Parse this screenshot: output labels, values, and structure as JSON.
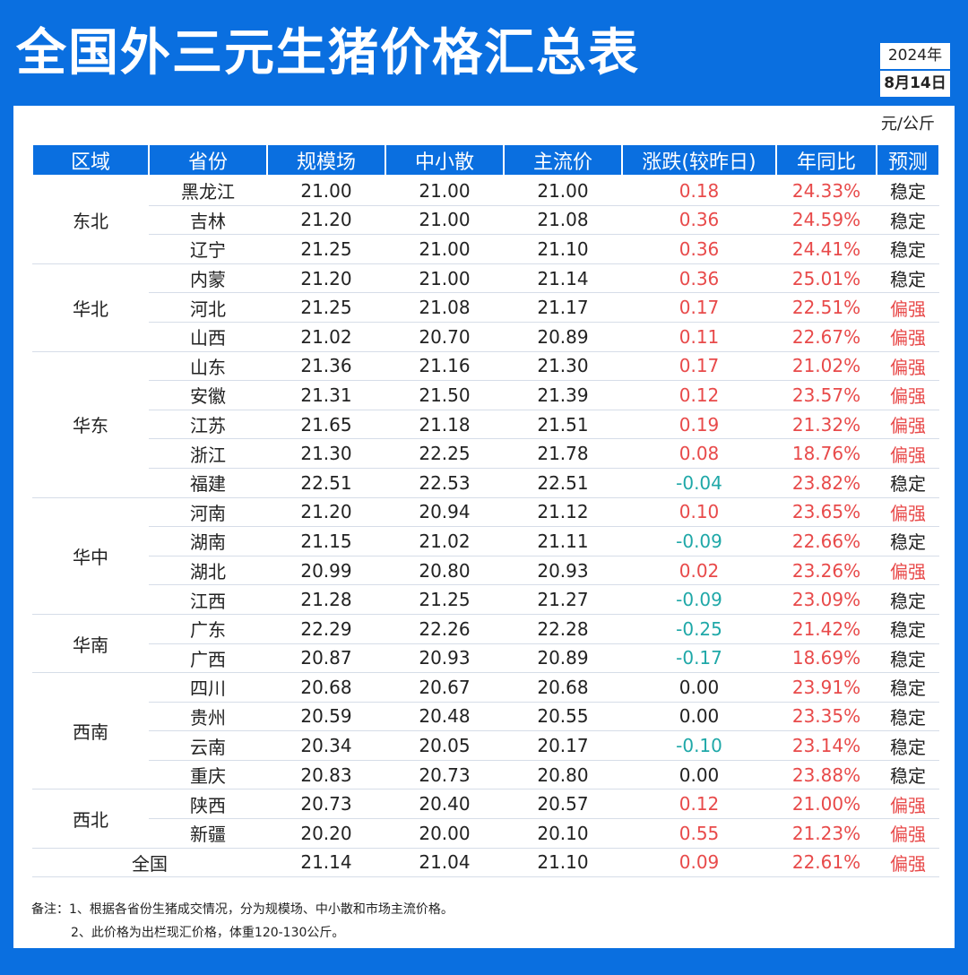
{
  "title": "全国外三元生猪价格汇总表",
  "date": {
    "year": "2024年",
    "day": "8月14日"
  },
  "unit": "元/公斤",
  "headers": [
    "区域",
    "省份",
    "规模场",
    "中小散",
    "主流价",
    "涨跌(较昨日)",
    "年同比",
    "预测"
  ],
  "regions": [
    {
      "name": "东北",
      "rows": [
        {
          "province": "黑龙江",
          "large": "21.00",
          "small": "21.00",
          "main": "21.00",
          "change": "0.18",
          "yoy": "24.33%",
          "forecast": "稳定"
        },
        {
          "province": "吉林",
          "large": "21.20",
          "small": "21.00",
          "main": "21.08",
          "change": "0.36",
          "yoy": "24.59%",
          "forecast": "稳定"
        },
        {
          "province": "辽宁",
          "large": "21.25",
          "small": "21.00",
          "main": "21.10",
          "change": "0.36",
          "yoy": "24.41%",
          "forecast": "稳定"
        }
      ]
    },
    {
      "name": "华北",
      "rows": [
        {
          "province": "内蒙",
          "large": "21.20",
          "small": "21.00",
          "main": "21.14",
          "change": "0.36",
          "yoy": "25.01%",
          "forecast": "稳定"
        },
        {
          "province": "河北",
          "large": "21.25",
          "small": "21.08",
          "main": "21.17",
          "change": "0.17",
          "yoy": "22.51%",
          "forecast": "偏强"
        },
        {
          "province": "山西",
          "large": "21.02",
          "small": "20.70",
          "main": "20.89",
          "change": "0.11",
          "yoy": "22.67%",
          "forecast": "偏强"
        }
      ]
    },
    {
      "name": "华东",
      "rows": [
        {
          "province": "山东",
          "large": "21.36",
          "small": "21.16",
          "main": "21.30",
          "change": "0.17",
          "yoy": "21.02%",
          "forecast": "偏强"
        },
        {
          "province": "安徽",
          "large": "21.31",
          "small": "21.50",
          "main": "21.39",
          "change": "0.12",
          "yoy": "23.57%",
          "forecast": "偏强"
        },
        {
          "province": "江苏",
          "large": "21.65",
          "small": "21.18",
          "main": "21.51",
          "change": "0.19",
          "yoy": "21.32%",
          "forecast": "偏强"
        },
        {
          "province": "浙江",
          "large": "21.30",
          "small": "22.25",
          "main": "21.78",
          "change": "0.08",
          "yoy": "18.76%",
          "forecast": "偏强"
        },
        {
          "province": "福建",
          "large": "22.51",
          "small": "22.53",
          "main": "22.51",
          "change": "-0.04",
          "yoy": "23.82%",
          "forecast": "稳定"
        }
      ]
    },
    {
      "name": "华中",
      "rows": [
        {
          "province": "河南",
          "large": "21.20",
          "small": "20.94",
          "main": "21.12",
          "change": "0.10",
          "yoy": "23.65%",
          "forecast": "偏强"
        },
        {
          "province": "湖南",
          "large": "21.15",
          "small": "21.02",
          "main": "21.11",
          "change": "-0.09",
          "yoy": "22.66%",
          "forecast": "稳定"
        },
        {
          "province": "湖北",
          "large": "20.99",
          "small": "20.80",
          "main": "20.93",
          "change": "0.02",
          "yoy": "23.26%",
          "forecast": "偏强"
        },
        {
          "province": "江西",
          "large": "21.28",
          "small": "21.25",
          "main": "21.27",
          "change": "-0.09",
          "yoy": "23.09%",
          "forecast": "稳定"
        }
      ]
    },
    {
      "name": "华南",
      "rows": [
        {
          "province": "广东",
          "large": "22.29",
          "small": "22.26",
          "main": "22.28",
          "change": "-0.25",
          "yoy": "21.42%",
          "forecast": "稳定"
        },
        {
          "province": "广西",
          "large": "20.87",
          "small": "20.93",
          "main": "20.89",
          "change": "-0.17",
          "yoy": "18.69%",
          "forecast": "稳定"
        }
      ]
    },
    {
      "name": "西南",
      "rows": [
        {
          "province": "四川",
          "large": "20.68",
          "small": "20.67",
          "main": "20.68",
          "change": "0.00",
          "yoy": "23.91%",
          "forecast": "稳定"
        },
        {
          "province": "贵州",
          "large": "20.59",
          "small": "20.48",
          "main": "20.55",
          "change": "0.00",
          "yoy": "23.35%",
          "forecast": "稳定"
        },
        {
          "province": "云南",
          "large": "20.34",
          "small": "20.05",
          "main": "20.17",
          "change": "-0.10",
          "yoy": "23.14%",
          "forecast": "稳定"
        },
        {
          "province": "重庆",
          "large": "20.83",
          "small": "20.73",
          "main": "20.80",
          "change": "0.00",
          "yoy": "23.88%",
          "forecast": "稳定"
        }
      ]
    },
    {
      "name": "西北",
      "rows": [
        {
          "province": "陕西",
          "large": "20.73",
          "small": "20.40",
          "main": "20.57",
          "change": "0.12",
          "yoy": "21.00%",
          "forecast": "偏强"
        },
        {
          "province": "新疆",
          "large": "20.20",
          "small": "20.00",
          "main": "20.10",
          "change": "0.55",
          "yoy": "21.23%",
          "forecast": "偏强"
        }
      ]
    }
  ],
  "national": {
    "label": "全国",
    "large": "21.14",
    "small": "21.04",
    "main": "21.10",
    "change": "0.09",
    "yoy": "22.61%",
    "forecast": "偏强"
  },
  "notes": [
    "备注：1、根据各省份生猪成交情况，分为规模场、中小散和市场主流价格。",
    "2、此价格为出栏现汇价格，体重120-130公斤。"
  ],
  "colors": {
    "brand_blue": "#0a6fe0",
    "up_red": "#e84a4a",
    "down_teal": "#1fa8a8"
  }
}
